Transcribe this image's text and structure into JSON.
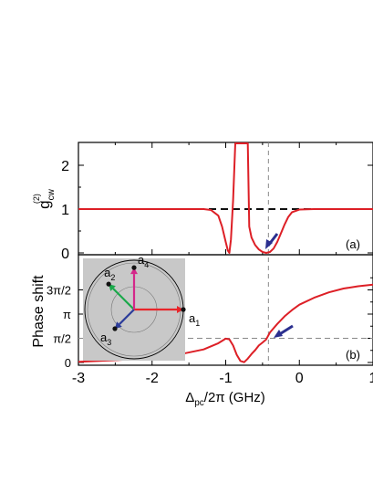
{
  "chart_data": [
    {
      "panel_label": "(a)",
      "type": "line",
      "ylabel_main": "g",
      "ylabel_sub": "cw",
      "ylabel_sup": "(2)",
      "xlim": [
        -3,
        1
      ],
      "ylim": [
        0,
        2.5
      ],
      "y_ticks": [
        "0",
        "1",
        "2"
      ],
      "series": [
        {
          "color": "#dd1f26",
          "x": [
            -3.0,
            -1.3,
            -1.2,
            -1.1,
            -1.05,
            -1.0,
            -0.97,
            -0.95,
            -0.93,
            -0.9,
            -0.87,
            -0.85,
            -0.82,
            -0.8,
            -0.78,
            -0.76,
            -0.74,
            -0.72,
            -0.7,
            -0.68,
            -0.65,
            -0.6,
            -0.55,
            -0.5,
            -0.45,
            -0.4,
            -0.35,
            -0.3,
            -0.25,
            -0.2,
            -0.15,
            -0.1,
            0.0,
            0.2,
            1.0
          ],
          "y": [
            1.0,
            1.0,
            0.98,
            0.85,
            0.6,
            0.25,
            0.05,
            0.0,
            0.3,
            1.2,
            2.5,
            2.5,
            2.5,
            2.5,
            2.5,
            2.5,
            2.5,
            2.5,
            2.5,
            0.6,
            0.35,
            0.18,
            0.08,
            0.02,
            0.0,
            0.02,
            0.1,
            0.25,
            0.45,
            0.65,
            0.82,
            0.93,
            0.99,
            1.0,
            1.0
          ]
        }
      ],
      "reference_line_y": 1,
      "marker_x": -0.42
    },
    {
      "panel_label": "(b)",
      "type": "line",
      "ylabel": "Phase shift",
      "xlabel": "Δpc/2π (GHz)",
      "xlabel_main": "Δ",
      "xlabel_sub": "pc",
      "xlabel_rest": "/2π (GHz)",
      "xlim": [
        -3,
        1
      ],
      "ylim": [
        0,
        5.1
      ],
      "x_ticks": [
        "-3",
        "-2",
        "-1",
        "0",
        "1"
      ],
      "y_ticks": [
        "0",
        "π/2",
        "π",
        "3π/2"
      ],
      "series": [
        {
          "color": "#dd1f26",
          "x": [
            -3.0,
            -2.5,
            -2.0,
            -1.6,
            -1.3,
            -1.1,
            -1.0,
            -0.95,
            -0.9,
            -0.85,
            -0.8,
            -0.75,
            -0.7,
            -0.65,
            -0.6,
            -0.55,
            -0.5,
            -0.45,
            -0.4,
            -0.3,
            -0.2,
            -0.1,
            0.0,
            0.2,
            0.4,
            0.6,
            0.8,
            1.0
          ],
          "y": [
            0.05,
            0.15,
            0.3,
            0.55,
            0.85,
            1.25,
            1.55,
            1.5,
            1.1,
            0.5,
            0.1,
            0.02,
            0.25,
            0.55,
            0.8,
            1.1,
            1.3,
            1.5,
            1.95,
            2.5,
            3.0,
            3.4,
            3.75,
            4.2,
            4.55,
            4.8,
            4.95,
            5.05
          ]
        }
      ],
      "reference_line_y": 1.5708,
      "marker_x": -0.42
    }
  ],
  "inset": {
    "vectors": [
      {
        "label": "a",
        "sub": "1",
        "color": "#e8262b",
        "angle_deg": 0,
        "length": 1.0
      },
      {
        "label": "a",
        "sub": "2",
        "color": "#1aa84a",
        "angle_deg": 135,
        "length": 0.73
      },
      {
        "label": "a",
        "sub": "3",
        "color": "#2d3d9a",
        "angle_deg": 225,
        "length": 0.55
      },
      {
        "label": "a",
        "sub": "4",
        "color": "#d4288a",
        "angle_deg": 90,
        "length": 0.85
      }
    ]
  },
  "colors": {
    "curve": "#dd1f26",
    "reference_dashed_black": "#111111",
    "dashed_gray": "#888888",
    "arrow": "#2b2f8f",
    "inset_bg": "#c8c8c8"
  }
}
